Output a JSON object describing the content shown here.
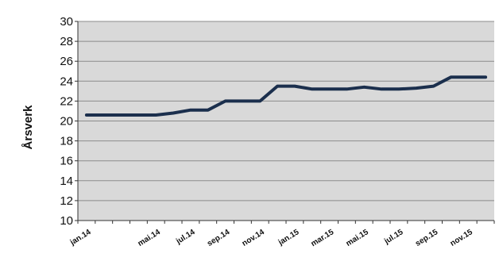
{
  "chart_data": {
    "type": "line",
    "title": "",
    "xlabel": "",
    "ylabel": "Årsverk",
    "ylim": [
      10,
      30
    ],
    "yticks": [
      "10",
      "12",
      "14",
      "16",
      "18",
      "20",
      "22",
      "24",
      "26",
      "28",
      "30"
    ],
    "x_tick_labels": [
      "jan.14",
      "mai.14",
      "jul.14",
      "sep.14",
      "nov.14",
      "jan.15",
      "mar.15",
      "mai.15",
      "jul.15",
      "sep.15",
      "nov.15"
    ],
    "grid": true,
    "legend": "none",
    "colors": {
      "line": "#1b2f4d",
      "plot_background": "#d9d9d9",
      "grid": "#8c8c8c"
    },
    "series": [
      {
        "x": [
          "jan.14",
          "feb.14",
          "mar.14",
          "apr.14",
          "mai.14",
          "jun.14",
          "jul.14",
          "aug.14",
          "sep.14",
          "okt.14",
          "nov.14",
          "des.14",
          "jan.15",
          "feb.15",
          "mar.15",
          "apr.15",
          "mai.15",
          "jun.15",
          "jul.15",
          "aug.15",
          "sep.15",
          "okt.15",
          "nov.15",
          "des.15"
        ],
        "values": [
          20.6,
          20.6,
          20.6,
          20.6,
          20.6,
          20.8,
          21.1,
          21.1,
          22.0,
          22.0,
          22.0,
          23.5,
          23.5,
          23.2,
          23.2,
          23.2,
          23.4,
          23.2,
          23.2,
          23.3,
          23.5,
          24.4,
          24.4,
          24.4
        ]
      }
    ]
  }
}
